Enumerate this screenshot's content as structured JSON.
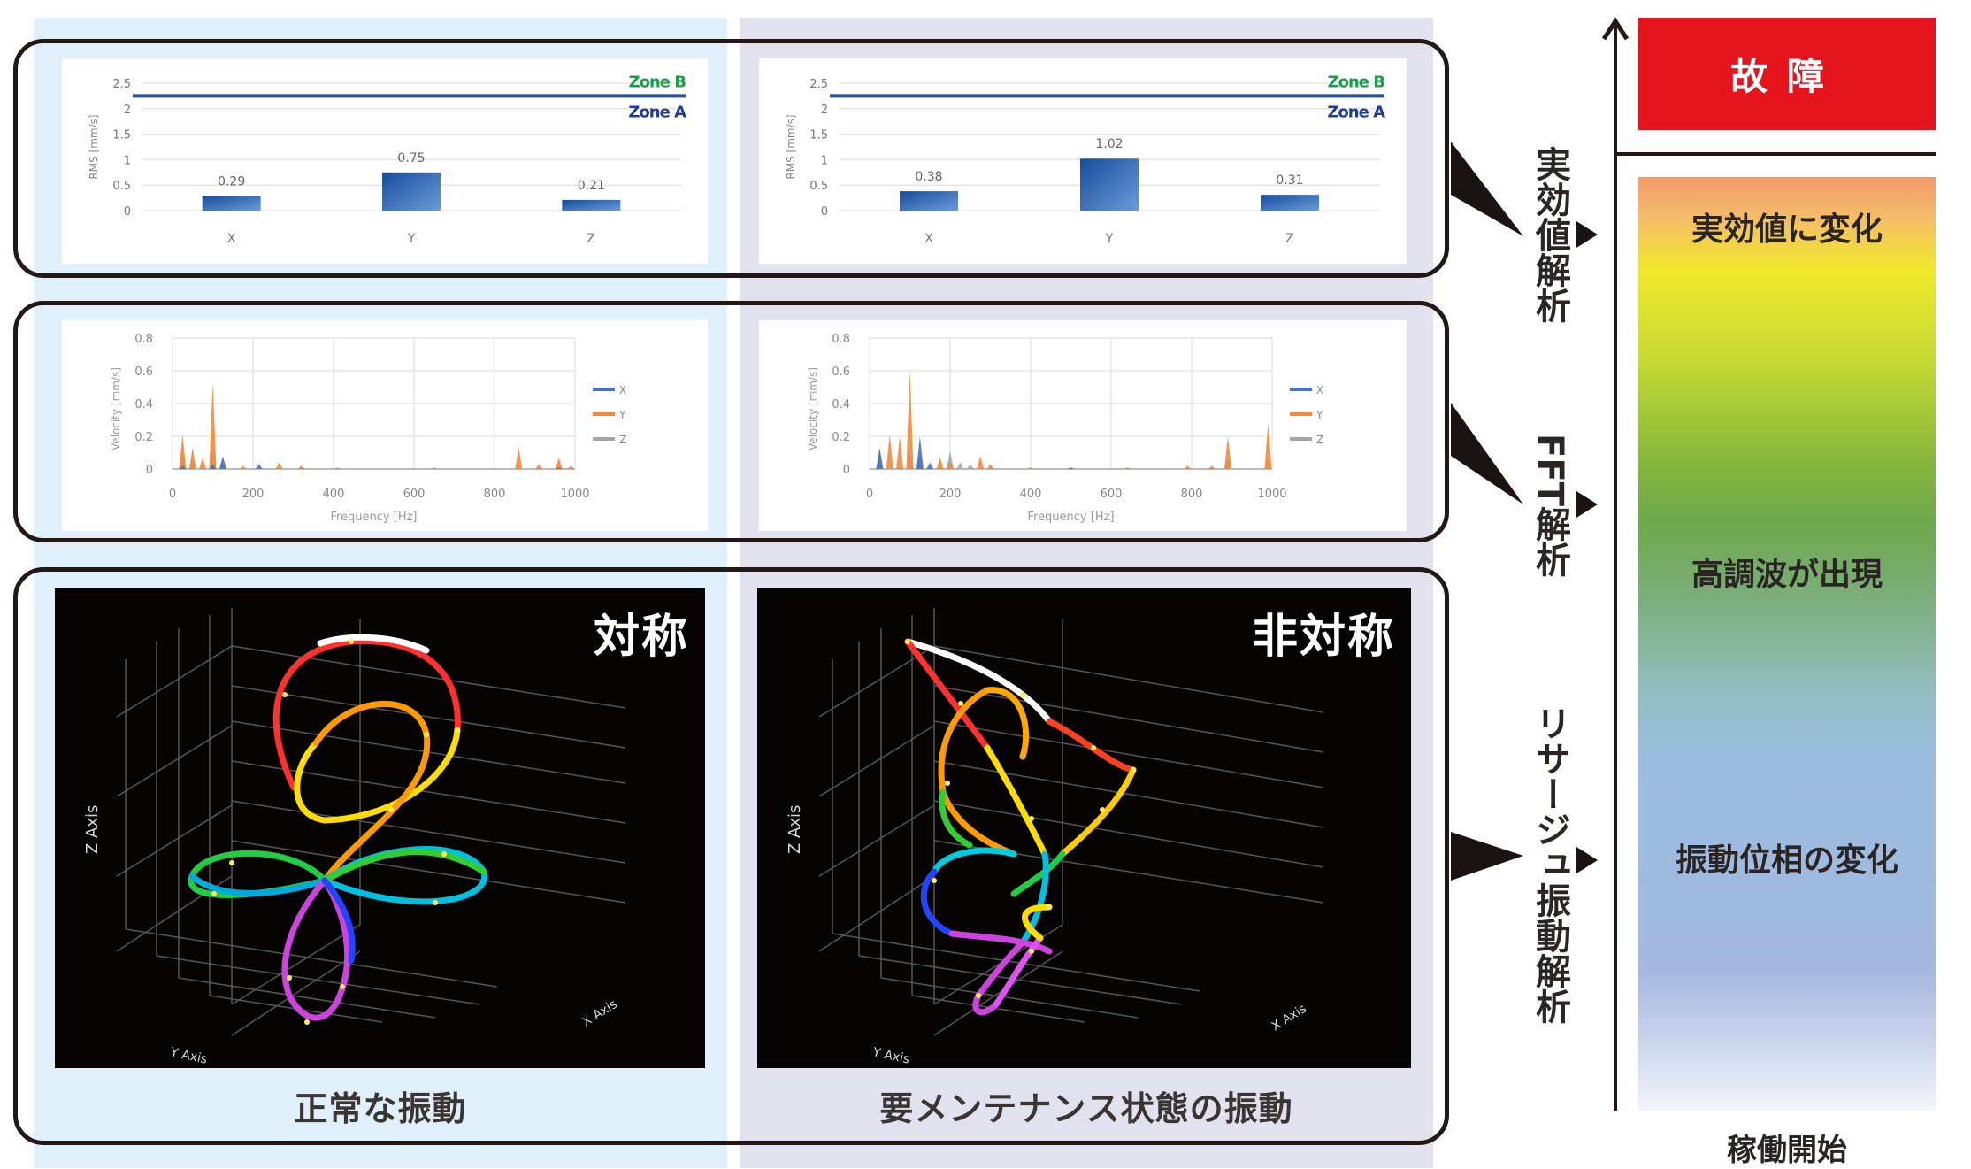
{
  "columns": {
    "normal": {
      "label": "正常な振動",
      "lissajous_title": "対称",
      "color": "#dff0fa"
    },
    "maintenance": {
      "label": "要メンテナンス状態の振動",
      "lissajous_title": "非対称",
      "color": "#e2e1ee"
    }
  },
  "analysis_methods": [
    {
      "label": "実効値解析"
    },
    {
      "label": "FFT解析"
    },
    {
      "label": "リサージュ振動解析"
    }
  ],
  "lifecycle_bar": {
    "top_label": "故障",
    "top_color": "#e5141d",
    "stages": [
      {
        "label": "実効値に変化"
      },
      {
        "label": "高調波が出現"
      },
      {
        "label": "振動位相の変化"
      }
    ],
    "bottom_label": "稼働開始"
  },
  "lissajous_axes": {
    "z": "Z Axis",
    "y": "Y Axis",
    "x": "X Axis"
  },
  "chart_data": [
    {
      "id": "rms-normal",
      "type": "bar",
      "title": "",
      "categories": [
        "X",
        "Y",
        "Z"
      ],
      "values": [
        0.29,
        0.75,
        0.21
      ],
      "data_labels": [
        "0.29",
        "0.75",
        "0.21"
      ],
      "xlabel": "",
      "ylabel": "RMS [mm/s]",
      "ylim": [
        0,
        2.5
      ],
      "yticks": [
        "0",
        "0.5",
        "1",
        "1.5",
        "2",
        "2.5"
      ],
      "threshold": {
        "value": 2.25,
        "color": "#1f4e9c",
        "above_label": "Zone B",
        "above_color": "#17a04a",
        "below_label": "Zone A",
        "below_color": "#1f3c96"
      },
      "bar_color": "#1f5aa8",
      "grid": true
    },
    {
      "id": "rms-maintenance",
      "type": "bar",
      "title": "",
      "categories": [
        "X",
        "Y",
        "Z"
      ],
      "values": [
        0.38,
        1.02,
        0.31
      ],
      "data_labels": [
        "0.38",
        "1.02",
        "0.31"
      ],
      "xlabel": "",
      "ylabel": "RMS [mm/s]",
      "ylim": [
        0,
        2.5
      ],
      "yticks": [
        "0",
        "0.5",
        "1",
        "1.5",
        "2",
        "2.5"
      ],
      "threshold": {
        "value": 2.25,
        "color": "#1f4e9c",
        "above_label": "Zone B",
        "above_color": "#17a04a",
        "below_label": "Zone A",
        "below_color": "#1f3c96"
      },
      "bar_color": "#1f5aa8",
      "grid": true
    },
    {
      "id": "fft-normal",
      "type": "line",
      "title": "",
      "xlabel": "Frequency [Hz]",
      "ylabel": "Velocity [mm/s]",
      "xlim": [
        0,
        1000
      ],
      "ylim": [
        0,
        0.8
      ],
      "xticks": [
        "0",
        "200",
        "400",
        "600",
        "800",
        "1000"
      ],
      "yticks": [
        "0",
        "0.2",
        "0.4",
        "0.6",
        "0.8"
      ],
      "legend": [
        "X",
        "Y",
        "Z"
      ],
      "legend_position": "right",
      "grid": true,
      "series": [
        {
          "name": "X",
          "color": "#4a72c4",
          "peaks": [
            [
              25,
              0.02
            ],
            [
              100,
              0.03
            ],
            [
              125,
              0.08
            ],
            [
              215,
              0.03
            ],
            [
              960,
              0.01
            ]
          ]
        },
        {
          "name": "Y",
          "color": "#f08a3c",
          "peaks": [
            [
              25,
              0.21
            ],
            [
              50,
              0.13
            ],
            [
              75,
              0.07
            ],
            [
              100,
              0.53
            ],
            [
              125,
              0.04
            ],
            [
              175,
              0.02
            ],
            [
              265,
              0.04
            ],
            [
              320,
              0.02
            ],
            [
              410,
              0.01
            ],
            [
              860,
              0.13
            ],
            [
              910,
              0.03
            ],
            [
              960,
              0.07
            ],
            [
              990,
              0.02
            ]
          ]
        },
        {
          "name": "Z",
          "color": "#a6a6a6",
          "peaks": [
            [
              25,
              0.1
            ],
            [
              50,
              0.05
            ],
            [
              100,
              0.13
            ],
            [
              125,
              0.03
            ],
            [
              650,
              0.01
            ],
            [
              960,
              0.01
            ]
          ]
        }
      ]
    },
    {
      "id": "fft-maintenance",
      "type": "line",
      "title": "",
      "xlabel": "Frequency [Hz]",
      "ylabel": "Velocity [mm/s]",
      "xlim": [
        0,
        1000
      ],
      "ylim": [
        0,
        0.8
      ],
      "xticks": [
        "0",
        "200",
        "400",
        "600",
        "800",
        "1000"
      ],
      "yticks": [
        "0",
        "0.2",
        "0.4",
        "0.6",
        "0.8"
      ],
      "legend": [
        "X",
        "Y",
        "Z"
      ],
      "legend_position": "right",
      "grid": true,
      "series": [
        {
          "name": "X",
          "color": "#4a72c4",
          "peaks": [
            [
              25,
              0.13
            ],
            [
              125,
              0.2
            ],
            [
              150,
              0.04
            ],
            [
              500,
              0.01
            ]
          ]
        },
        {
          "name": "Y",
          "color": "#f08a3c",
          "peaks": [
            [
              25,
              0.1
            ],
            [
              50,
              0.21
            ],
            [
              75,
              0.2
            ],
            [
              100,
              0.6
            ],
            [
              125,
              0.09
            ],
            [
              175,
              0.07
            ],
            [
              200,
              0.05
            ],
            [
              275,
              0.08
            ],
            [
              300,
              0.03
            ],
            [
              400,
              0.01
            ],
            [
              640,
              0.01
            ],
            [
              790,
              0.02
            ],
            [
              850,
              0.02
            ],
            [
              890,
              0.2
            ],
            [
              990,
              0.28
            ]
          ]
        },
        {
          "name": "Z",
          "color": "#a6a6a6",
          "peaks": [
            [
              25,
              0.08
            ],
            [
              100,
              0.1
            ],
            [
              125,
              0.06
            ],
            [
              200,
              0.11
            ],
            [
              225,
              0.04
            ],
            [
              250,
              0.03
            ],
            [
              890,
              0.06
            ],
            [
              990,
              0.07
            ]
          ]
        }
      ]
    }
  ]
}
